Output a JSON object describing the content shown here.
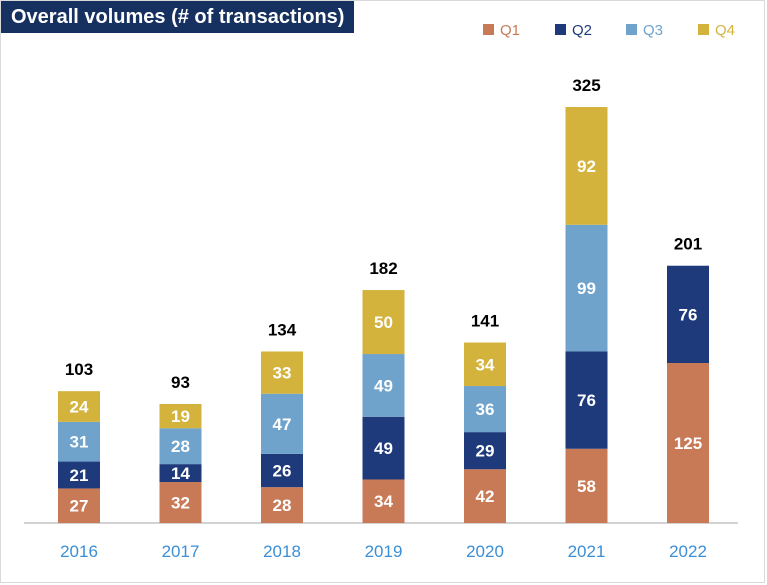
{
  "title": "Overall volumes (# of transactions)",
  "chart_data": {
    "type": "bar",
    "stacked": true,
    "title": "Overall volumes (# of transactions)",
    "categories": [
      "2016",
      "2017",
      "2018",
      "2019",
      "2020",
      "2021",
      "2022"
    ],
    "series": [
      {
        "name": "Q1",
        "color": "#c87a57",
        "values": [
          27,
          32,
          28,
          34,
          42,
          58,
          125
        ]
      },
      {
        "name": "Q2",
        "color": "#1f3a7a",
        "values": [
          21,
          14,
          26,
          49,
          29,
          76,
          76
        ]
      },
      {
        "name": "Q3",
        "color": "#6fa3cb",
        "values": [
          31,
          28,
          47,
          49,
          36,
          99,
          null
        ]
      },
      {
        "name": "Q4",
        "color": "#d4b33d",
        "values": [
          24,
          19,
          33,
          50,
          34,
          92,
          null
        ]
      }
    ],
    "totals": [
      103,
      93,
      134,
      182,
      141,
      325,
      201
    ],
    "legend_position": "top-right",
    "grid": false,
    "ylim": [
      0,
      325
    ]
  }
}
